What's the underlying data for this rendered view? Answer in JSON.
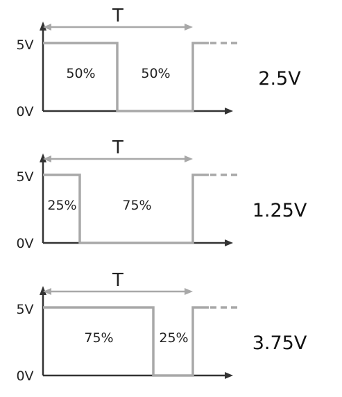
{
  "period_label": "T",
  "level_high": "5V",
  "level_low": "0V",
  "diagrams": [
    {
      "high_label": "50%",
      "low_label": "50%",
      "duty": 0.5,
      "average": "2.5V"
    },
    {
      "high_label": "25%",
      "low_label": "75%",
      "duty": 0.25,
      "average": "1.25V"
    },
    {
      "high_label": "75%",
      "low_label": "25%",
      "duty": 0.75,
      "average": "3.75V"
    }
  ],
  "colors": {
    "signal": "#a8a8a8",
    "axis": "#333333",
    "text": "#222222"
  }
}
